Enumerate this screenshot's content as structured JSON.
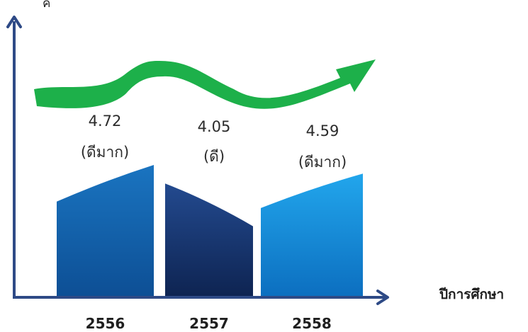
{
  "chart_data": {
    "type": "bar",
    "title": "",
    "xlabel": "ปีการศึกษา",
    "ylabel": "ค",
    "categories": [
      "2556",
      "2557",
      "2558"
    ],
    "values": [
      4.72,
      4.05,
      4.59
    ],
    "ratings": [
      "(ดีมาก)",
      "(ดี)",
      "(ดีมาก)"
    ],
    "colors": {
      "bar_2556": "#1668b3",
      "bar_2557": "#1b3f80",
      "bar_2558": "#1a95df",
      "axis": "#2e4a86",
      "trend_arrow": "#1db04a"
    }
  }
}
